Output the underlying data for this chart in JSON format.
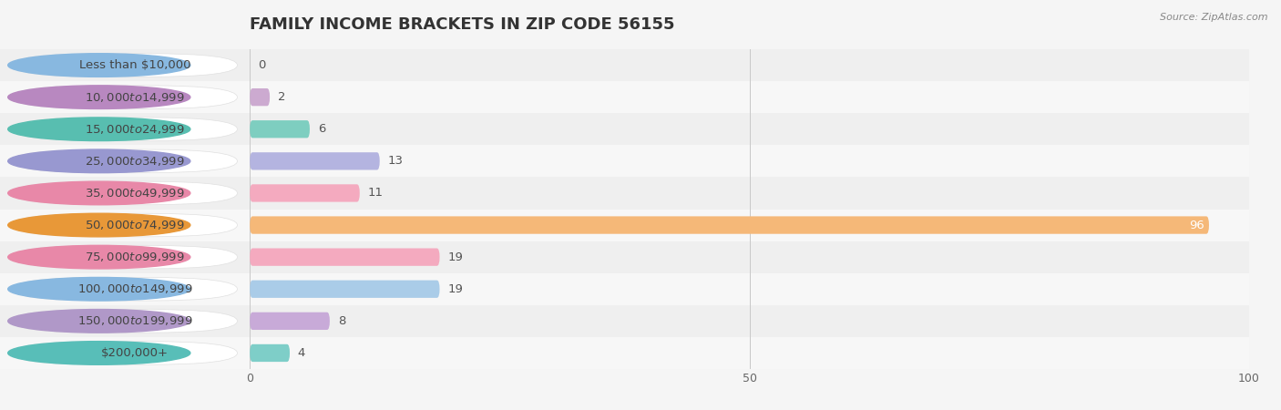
{
  "title": "FAMILY INCOME BRACKETS IN ZIP CODE 56155",
  "source": "Source: ZipAtlas.com",
  "categories": [
    "Less than $10,000",
    "$10,000 to $14,999",
    "$15,000 to $24,999",
    "$25,000 to $34,999",
    "$35,000 to $49,999",
    "$50,000 to $74,999",
    "$75,000 to $99,999",
    "$100,000 to $149,999",
    "$150,000 to $199,999",
    "$200,000+"
  ],
  "values": [
    0,
    2,
    6,
    13,
    11,
    96,
    19,
    19,
    8,
    4
  ],
  "bar_colors": [
    "#aacce8",
    "#ccaad0",
    "#7ecec0",
    "#b4b4e0",
    "#f4aabf",
    "#f5b878",
    "#f4aabf",
    "#aacce8",
    "#c8aad8",
    "#7ecec8"
  ],
  "circle_colors": [
    "#88b8e0",
    "#b888c0",
    "#58beb0",
    "#9898d0",
    "#e888a8",
    "#e89838",
    "#e888a8",
    "#88b8e0",
    "#b098c8",
    "#58beb8"
  ],
  "row_colors_even": "#efefef",
  "row_colors_odd": "#f7f7f7",
  "label_box_color": "#ffffff",
  "xlim": [
    0,
    100
  ],
  "xticks": [
    0,
    50,
    100
  ],
  "title_fontsize": 13,
  "label_fontsize": 9.5,
  "value_fontsize": 9.5,
  "bar_height": 0.55,
  "background_color": "#f5f5f5"
}
